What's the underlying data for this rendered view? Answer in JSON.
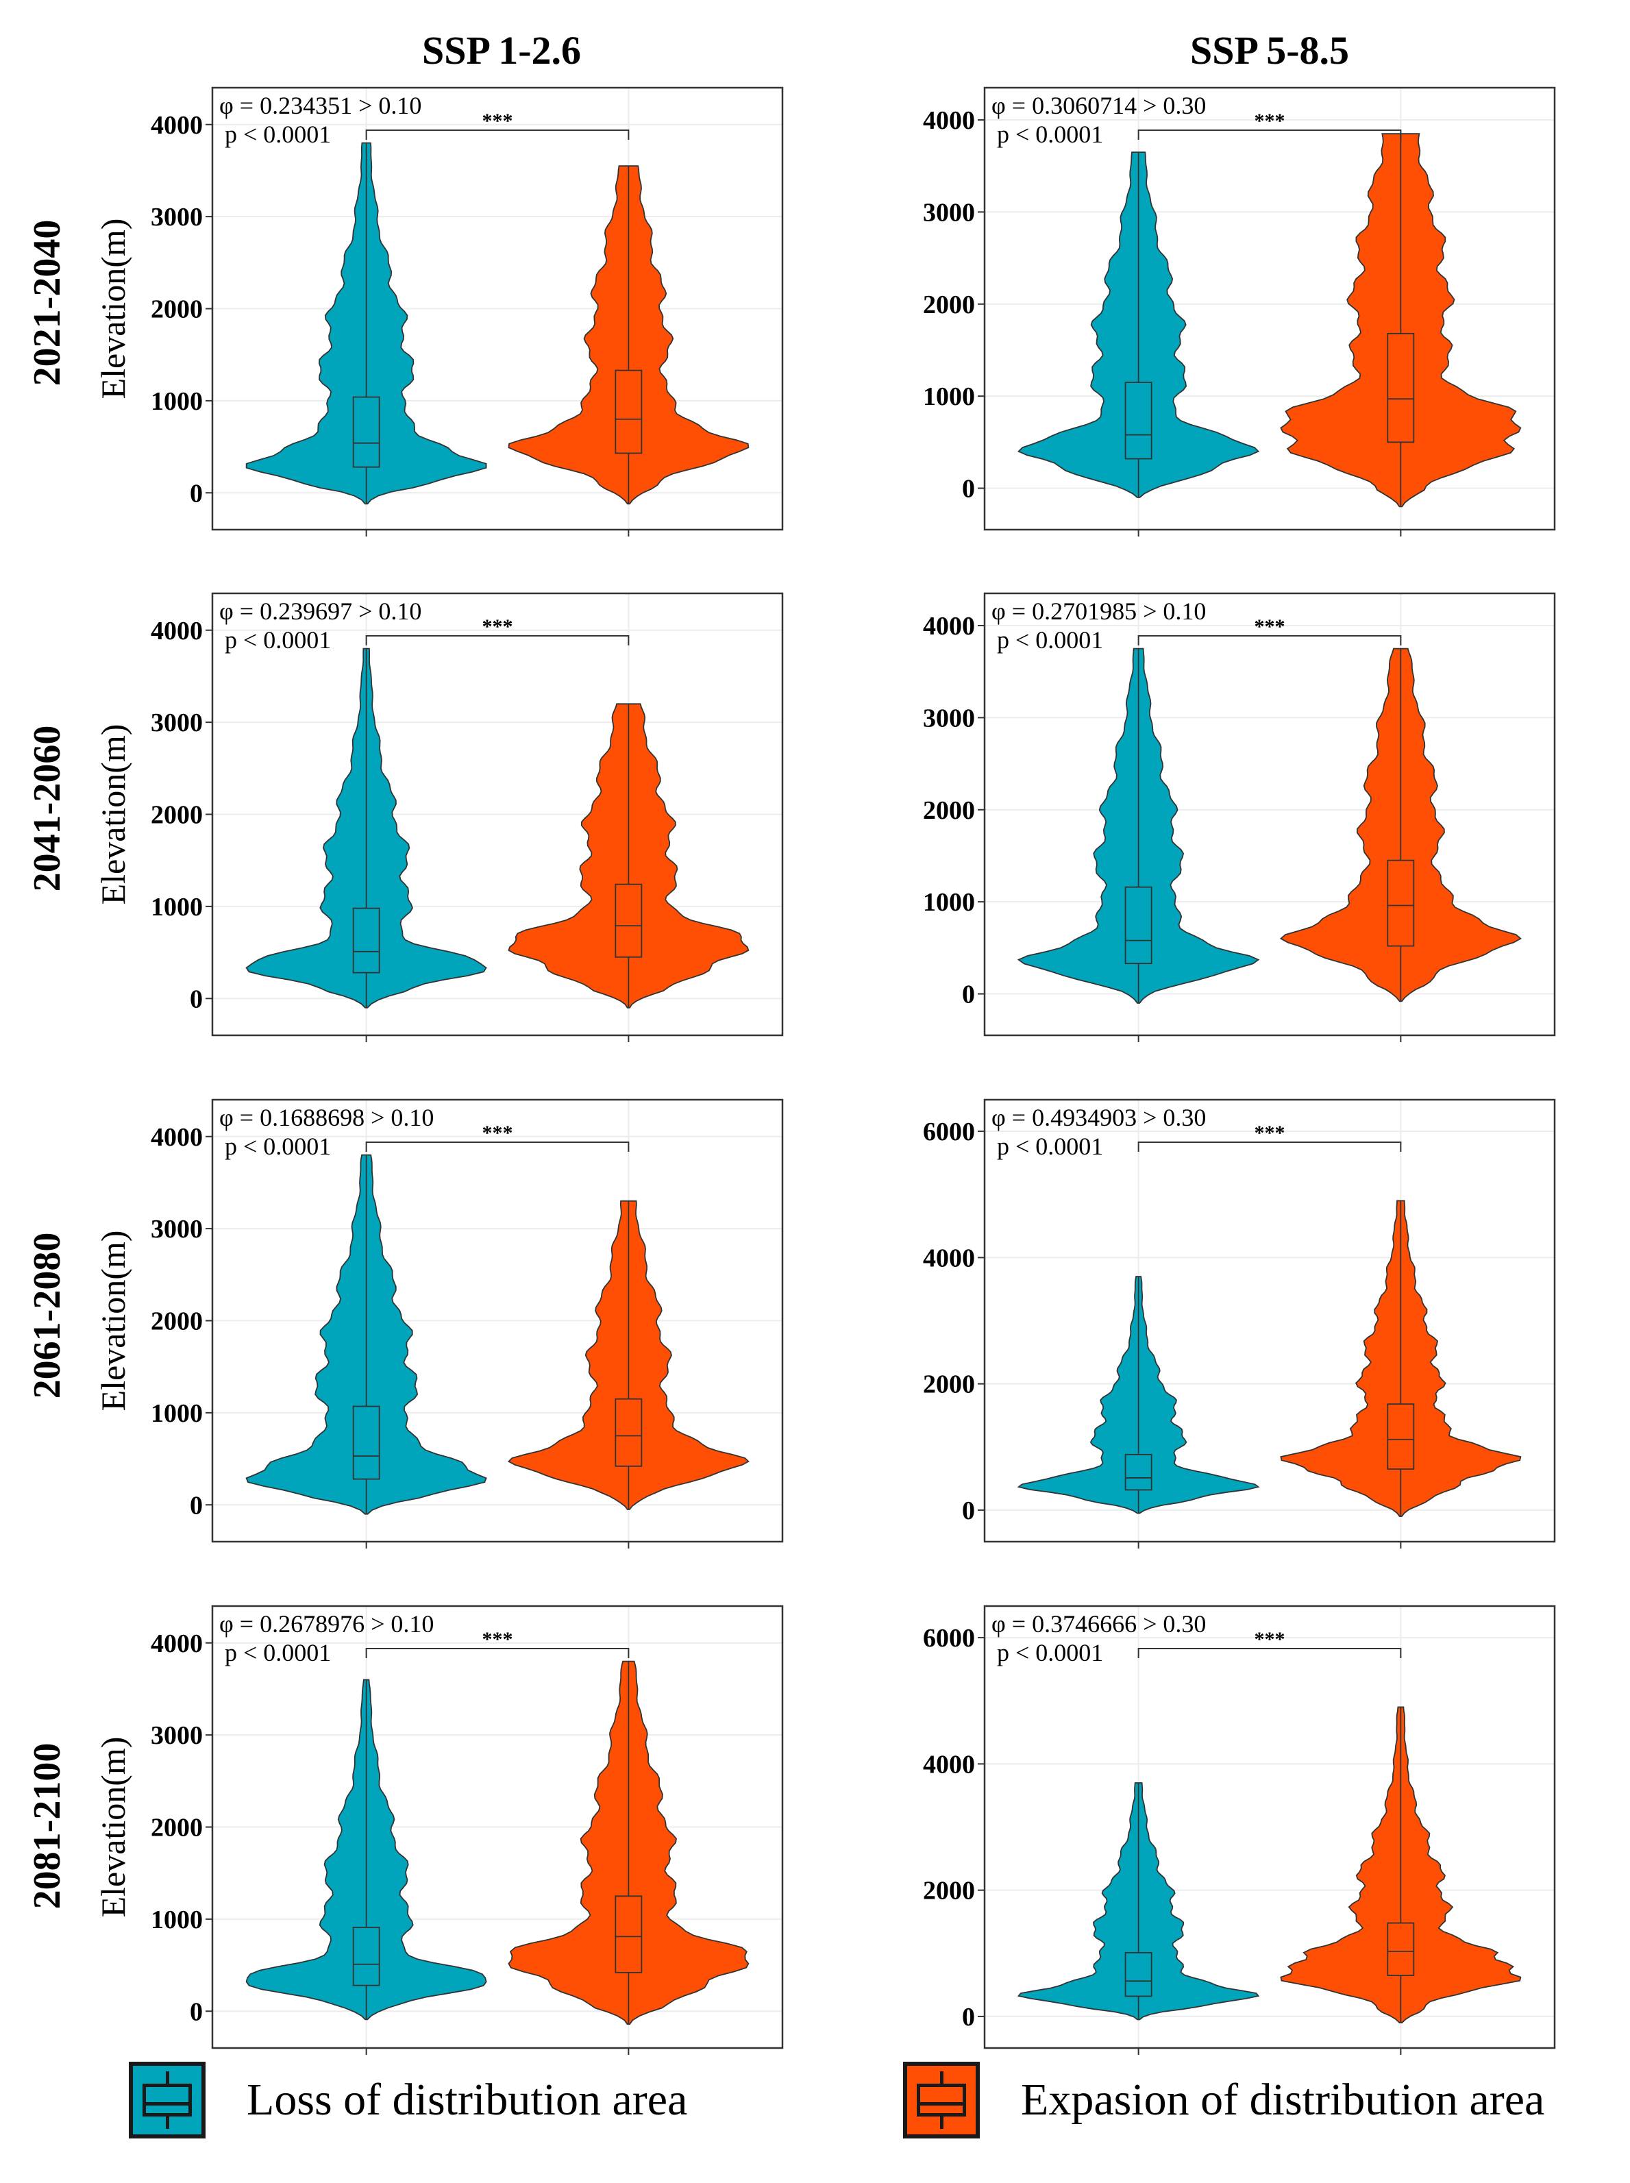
{
  "colors": {
    "loss": "#00A5BC",
    "expansion": "#FF4F04",
    "frame": "#333333"
  },
  "column_titles": [
    "SSP 1-2.6",
    "SSP 5-8.5"
  ],
  "row_labels": [
    "2021-2040",
    "2041-2060",
    "2061-2080",
    "2081-2100"
  ],
  "y_axis_label": "Elevation(m)",
  "significance_marker": "***",
  "legend": {
    "loss": {
      "label": "Loss of distribution area",
      "icon": "boxplot-icon"
    },
    "expansion": {
      "label": "Expasion of distribution area",
      "icon": "boxplot-icon"
    }
  },
  "chart_data": [
    {
      "type": "violin",
      "scenario": "SSP 1-2.6",
      "period": "2021-2040",
      "annot_phi": "φ = 0.234351 > 0.10",
      "annot_p": "p < 0.0001",
      "ylim": [
        -400,
        4400
      ],
      "yticks": [
        0,
        1000,
        2000,
        3000,
        4000
      ],
      "ylabel": "Elevation(m)",
      "series": [
        {
          "name": "Loss of distribution area",
          "box": {
            "q1": 280,
            "median": 540,
            "q3": 1040
          },
          "extent": [
            -120,
            3800
          ]
        },
        {
          "name": "Expasion of distribution area",
          "box": {
            "q1": 430,
            "median": 800,
            "q3": 1330
          },
          "extent": [
            -120,
            3550
          ]
        }
      ]
    },
    {
      "type": "violin",
      "scenario": "SSP 5-8.5",
      "period": "2021-2040",
      "annot_phi": "φ = 0.3060714 > 0.30",
      "annot_p": "p < 0.0001",
      "ylim": [
        -450,
        4350
      ],
      "yticks": [
        0,
        1000,
        2000,
        3000,
        4000
      ],
      "ylabel": "",
      "series": [
        {
          "name": "Loss of distribution area",
          "box": {
            "q1": 320,
            "median": 580,
            "q3": 1150
          },
          "extent": [
            -100,
            3650
          ]
        },
        {
          "name": "Expasion of distribution area",
          "box": {
            "q1": 500,
            "median": 970,
            "q3": 1680
          },
          "extent": [
            -200,
            3850
          ]
        }
      ]
    },
    {
      "type": "violin",
      "scenario": "SSP 1-2.6",
      "period": "2041-2060",
      "annot_phi": "φ = 0.239697 > 0.10",
      "annot_p": "p < 0.0001",
      "ylim": [
        -400,
        4400
      ],
      "yticks": [
        0,
        1000,
        2000,
        3000,
        4000
      ],
      "ylabel": "Elevation(m)",
      "series": [
        {
          "name": "Loss of distribution area",
          "box": {
            "q1": 280,
            "median": 510,
            "q3": 980
          },
          "extent": [
            -100,
            3800
          ]
        },
        {
          "name": "Expasion of distribution area",
          "box": {
            "q1": 450,
            "median": 790,
            "q3": 1240
          },
          "extent": [
            -100,
            3200
          ]
        }
      ]
    },
    {
      "type": "violin",
      "scenario": "SSP 5-8.5",
      "period": "2041-2060",
      "annot_phi": "φ = 0.2701985 > 0.10",
      "annot_p": "p < 0.0001",
      "ylim": [
        -450,
        4350
      ],
      "yticks": [
        0,
        1000,
        2000,
        3000,
        4000
      ],
      "ylabel": "",
      "series": [
        {
          "name": "Loss of distribution area",
          "box": {
            "q1": 330,
            "median": 580,
            "q3": 1160
          },
          "extent": [
            -100,
            3750
          ]
        },
        {
          "name": "Expasion of distribution area",
          "box": {
            "q1": 520,
            "median": 960,
            "q3": 1450
          },
          "extent": [
            -80,
            3750
          ]
        }
      ]
    },
    {
      "type": "violin",
      "scenario": "SSP 1-2.6",
      "period": "2061-2080",
      "annot_phi": "φ = 0.1688698 > 0.10",
      "annot_p": "p < 0.0001",
      "ylim": [
        -400,
        4400
      ],
      "yticks": [
        0,
        1000,
        2000,
        3000,
        4000
      ],
      "ylabel": "Elevation(m)",
      "series": [
        {
          "name": "Loss of distribution area",
          "box": {
            "q1": 280,
            "median": 530,
            "q3": 1070
          },
          "extent": [
            -100,
            3800
          ]
        },
        {
          "name": "Expasion of distribution area",
          "box": {
            "q1": 420,
            "median": 750,
            "q3": 1150
          },
          "extent": [
            -50,
            3300
          ]
        }
      ]
    },
    {
      "type": "violin",
      "scenario": "SSP 5-8.5",
      "period": "2061-2080",
      "annot_phi": "φ = 0.4934903 > 0.30",
      "annot_p": "p < 0.0001",
      "ylim": [
        -500,
        6500
      ],
      "yticks": [
        0,
        2000,
        4000,
        6000
      ],
      "ylabel": "",
      "series": [
        {
          "name": "Loss of distribution area",
          "box": {
            "q1": 320,
            "median": 510,
            "q3": 880
          },
          "extent": [
            -50,
            3700
          ]
        },
        {
          "name": "Expasion of distribution area",
          "box": {
            "q1": 650,
            "median": 1120,
            "q3": 1680
          },
          "extent": [
            -100,
            4900
          ]
        }
      ]
    },
    {
      "type": "violin",
      "scenario": "SSP 1-2.6",
      "period": "2081-2100",
      "annot_phi": "φ = 0.2678976 > 0.10",
      "annot_p": "p < 0.0001",
      "ylim": [
        -400,
        4400
      ],
      "yticks": [
        0,
        1000,
        2000,
        3000,
        4000
      ],
      "ylabel": "Elevation(m)",
      "series": [
        {
          "name": "Loss of distribution area",
          "box": {
            "q1": 280,
            "median": 510,
            "q3": 910
          },
          "extent": [
            -90,
            3600
          ]
        },
        {
          "name": "Expasion of distribution area",
          "box": {
            "q1": 420,
            "median": 810,
            "q3": 1250
          },
          "extent": [
            -140,
            3800
          ]
        }
      ]
    },
    {
      "type": "violin",
      "scenario": "SSP 5-8.5",
      "period": "2081-2100",
      "annot_phi": "φ = 0.3746666 > 0.30",
      "annot_p": "p < 0.0001",
      "ylim": [
        -500,
        6500
      ],
      "yticks": [
        0,
        2000,
        4000,
        6000
      ],
      "ylabel": "",
      "series": [
        {
          "name": "Loss of distribution area",
          "box": {
            "q1": 320,
            "median": 560,
            "q3": 1010
          },
          "extent": [
            -50,
            3700
          ]
        },
        {
          "name": "Expasion of distribution area",
          "box": {
            "q1": 650,
            "median": 1030,
            "q3": 1480
          },
          "extent": [
            -100,
            4900
          ]
        }
      ]
    }
  ]
}
